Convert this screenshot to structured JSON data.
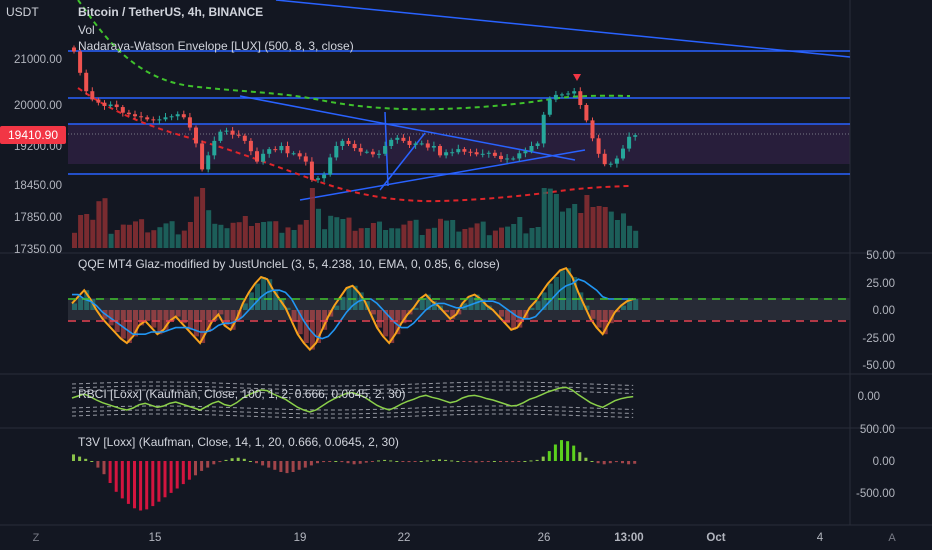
{
  "header": {
    "currency": "USDT",
    "title": "Bitcoin / TetherUS, 4h, BINANCE",
    "vol_label": "Vol",
    "envelope_label": "Nadaraya-Watson Envelope [LUX] (500, 8, 3, close)"
  },
  "price_badge": "19410.90",
  "panels": {
    "qqe_label": "QQE MT4 Glaz-modified by JustUncleL (3, 5, 4.238, 10, EMA, 0, 0.85, 6, close)",
    "rbci_label": "RBCI [Loxx] (Kaufman, Close, 100, 1, 2, 0.666, 0.0645, 2, 30)",
    "t3v_label": "T3V [Loxx] (Kaufman, Close, 14, 1, 20, 0.666, 0.0645, 2, 30)"
  },
  "footer": {
    "left_icon": "Z",
    "right_icon": "A"
  },
  "colors": {
    "background": "#131722",
    "up": "#26a69a",
    "down": "#ef5350",
    "trendline": "#2962ff",
    "envelope_upper": "#3fc12c",
    "envelope_lower": "#e0252a",
    "qqe_orange": "#f7a21c",
    "qqe_blue": "#2196f3",
    "badge": "#f23645"
  },
  "chart_data": [
    {
      "type": "candlestick",
      "title": "Bitcoin / TetherUS, 4h, BINANCE",
      "ylim": [
        17350,
        21300
      ],
      "y_ticks": [
        "21000.00",
        "20000.00",
        "19200.00",
        "18450.00",
        "17850.00",
        "17350.00"
      ],
      "x_ticks": [
        "15",
        "19",
        "22",
        "26",
        "13:00",
        "Oct",
        "4"
      ],
      "last_price": 19410.9,
      "close_series": [
        21150,
        20700,
        20300,
        20120,
        20050,
        19980,
        20010,
        19960,
        19850,
        19820,
        19780,
        19760,
        19720,
        19700,
        19720,
        19760,
        19780,
        19820,
        19760,
        19560,
        19250,
        18750,
        19020,
        19300,
        19480,
        19500,
        19420,
        19400,
        19300,
        19100,
        18900,
        19050,
        19140,
        19120,
        19200,
        19060,
        19060,
        19000,
        18900,
        18550,
        18580,
        18650,
        18980,
        19200,
        19300,
        19240,
        19160,
        19090,
        19090,
        19040,
        19050,
        19200,
        19320,
        19360,
        19300,
        19220,
        19250,
        19250,
        19170,
        19200,
        19020,
        19080,
        19080,
        19140,
        19090,
        19080,
        19040,
        19050,
        19070,
        19010,
        18950,
        18960,
        18960,
        19060,
        19100,
        19200,
        19250,
        19810,
        20120,
        20220,
        20230,
        20250,
        20300,
        20000,
        19700,
        19350,
        19050,
        18850,
        18860,
        18960,
        19150,
        19380,
        19410.9
      ],
      "annotations": [
        "down-arrow-marker"
      ]
    },
    {
      "type": "line",
      "title": "QQE MT4 Glaz-modified by JustUncleL (3, 5, 4.238, 10, EMA, 0, 0.85, 6, close)",
      "ylim": [
        -50,
        50
      ],
      "y_ticks": [
        "50.00",
        "25.00",
        "0.00",
        "-25.00",
        "-50.00"
      ],
      "threshold_up": 10,
      "threshold_down": -10
    },
    {
      "type": "line",
      "title": "RBCI [Loxx] (Kaufman, Close, 100, 1, 2, 0.666, 0.0645, 2, 30)",
      "y_ticks": [
        "0.00"
      ]
    },
    {
      "type": "bar",
      "title": "T3V [Loxx] (Kaufman, Close, 14, 1, 20, 0.666, 0.0645, 2, 30)",
      "y_ticks": [
        "500.00",
        "0.00",
        "-500.00"
      ]
    }
  ]
}
